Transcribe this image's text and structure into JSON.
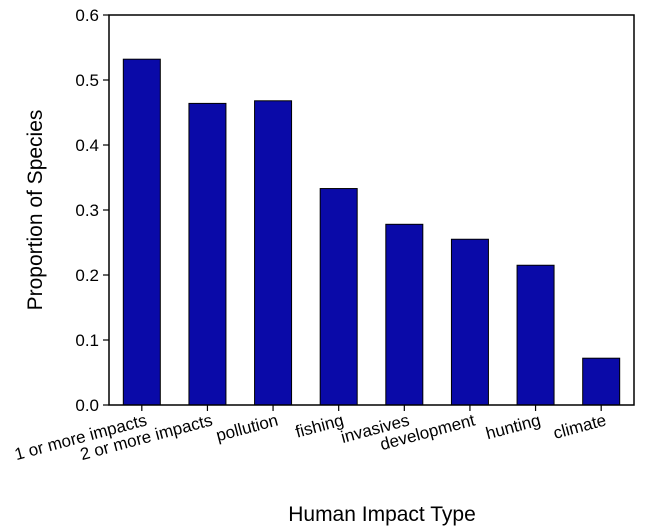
{
  "chart_data": {
    "type": "bar",
    "categories": [
      "1 or more impacts",
      "2 or more impacts",
      "pollution",
      "fishing",
      "invasives",
      "development",
      "hunting",
      "climate"
    ],
    "values": [
      0.532,
      0.464,
      0.468,
      0.333,
      0.278,
      0.255,
      0.215,
      0.072
    ],
    "xlabel": "Human Impact Type",
    "ylabel": "Proportion of Species",
    "ylim": [
      0,
      0.6
    ],
    "yticks": [
      "0.0",
      "0.1",
      "0.2",
      "0.3",
      "0.4",
      "0.5",
      "0.6"
    ],
    "bar_color": "#0a0aa8",
    "grid": false,
    "legend": "none"
  }
}
